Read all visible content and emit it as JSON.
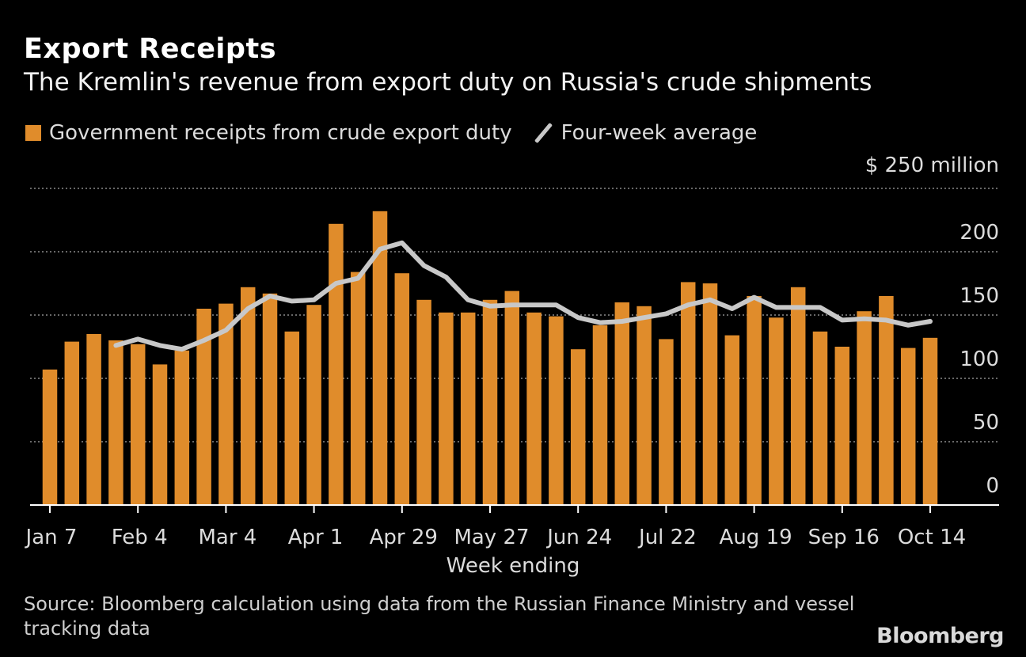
{
  "header": {
    "title": "Export Receipts",
    "subtitle": "The Kremlin's revenue from export duty on Russia's crude shipments"
  },
  "legend": {
    "bar_label": "Government receipts from crude export duty",
    "line_label": "Four-week average"
  },
  "colors": {
    "bar": "#e08c2b",
    "line": "#c8c8c8",
    "grid": "#8a8a8a",
    "axis": "#dcdcdc"
  },
  "footer": {
    "source": "Source: Bloomberg calculation using data from the Russian Finance Ministry and vessel tracking data",
    "brand": "Bloomberg"
  },
  "chart_data": {
    "type": "bar",
    "title": "Export Receipts",
    "subtitle": "The Kremlin's revenue from export duty on Russia's crude shipments",
    "xlabel": "Week ending",
    "unit_label": "$ 250 million",
    "ylim": [
      0,
      250
    ],
    "y_ticks": [
      0,
      50,
      100,
      150,
      200
    ],
    "grid": true,
    "legend_position": "top-left",
    "x_tick_labels": [
      "Jan 7",
      "Feb 4",
      "Mar 4",
      "Apr 1",
      "Apr 29",
      "May 27",
      "Jun 24",
      "Jul 22",
      "Aug 19",
      "Sep 16",
      "Oct 14"
    ],
    "x_tick_indices": [
      0,
      4,
      8,
      12,
      16,
      20,
      24,
      28,
      32,
      36,
      40
    ],
    "series": [
      {
        "name": "Government receipts from crude export duty",
        "type": "bar",
        "values": [
          107,
          129,
          135,
          130,
          127,
          111,
          122,
          155,
          159,
          172,
          167,
          137,
          158,
          222,
          184,
          232,
          183,
          162,
          152,
          152,
          162,
          169,
          152,
          149,
          123,
          142,
          160,
          157,
          131,
          176,
          175,
          134,
          165,
          148,
          172,
          137,
          125,
          153,
          165,
          124,
          132
        ]
      },
      {
        "name": "Four-week average",
        "type": "line",
        "start_index": 3,
        "values": [
          126,
          131,
          126,
          123,
          130,
          138,
          155,
          165,
          161,
          162,
          175,
          179,
          202,
          207,
          189,
          180,
          162,
          157,
          158,
          158,
          158,
          148,
          144,
          145,
          148,
          151,
          158,
          162,
          155,
          164,
          156,
          156,
          156,
          146,
          147,
          146,
          142,
          145
        ]
      }
    ]
  }
}
